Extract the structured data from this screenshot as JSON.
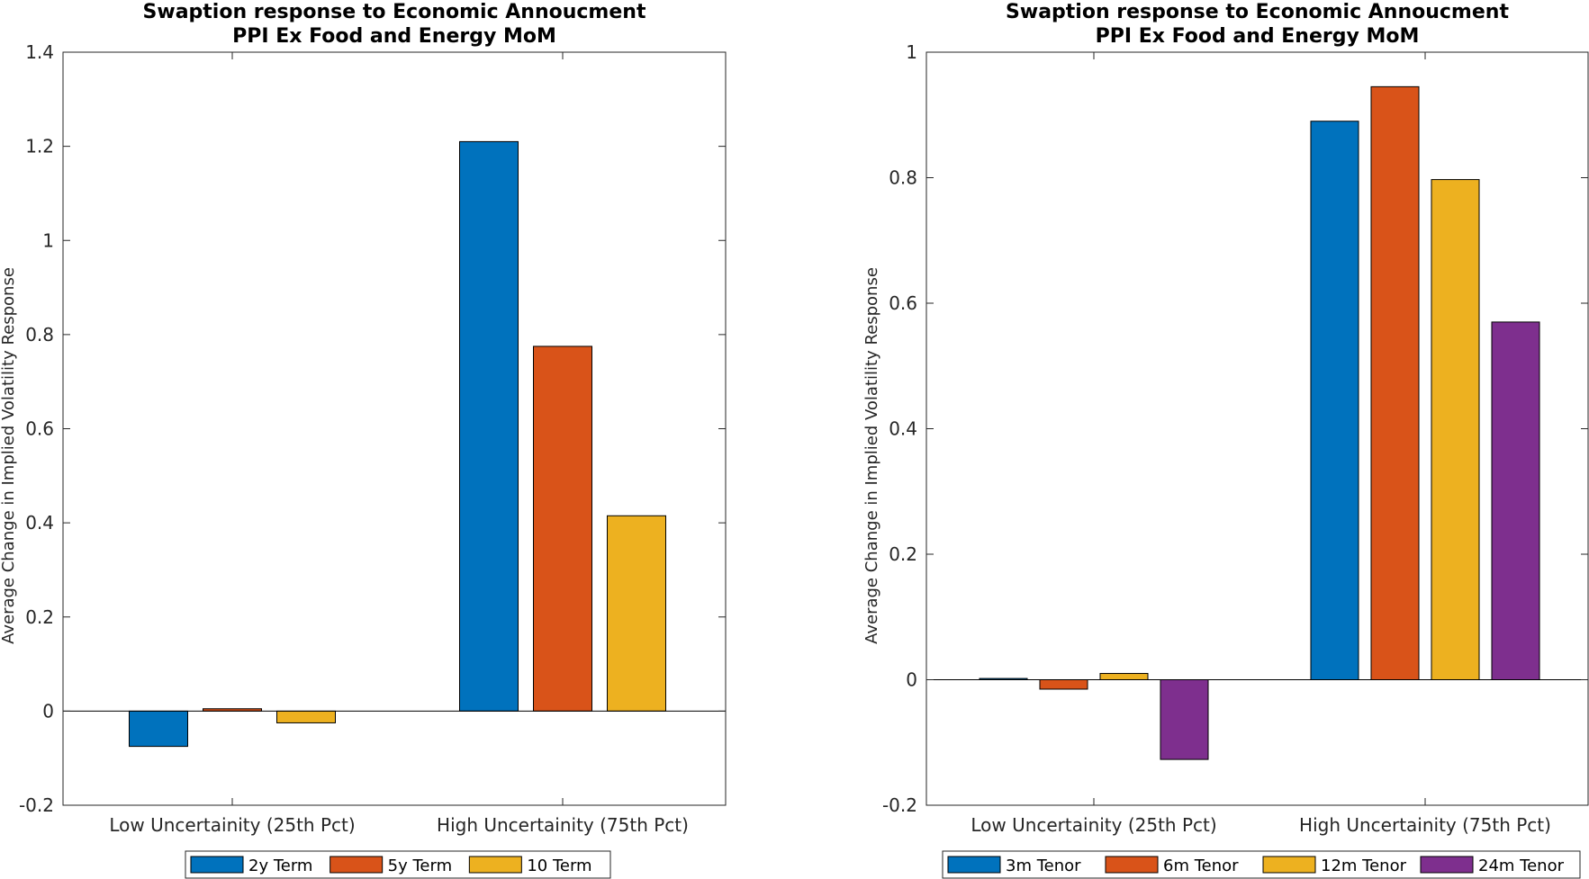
{
  "chart_data": [
    {
      "type": "bar",
      "title": "Swaption response to Economic Annoucment",
      "subtitle": "PPI Ex Food and Energy MoM",
      "xlabel": "",
      "ylabel": "Average Change in Implied Volatility Response",
      "categories": [
        "Low Uncertainity (25th Pct)",
        "High Uncertainity (75th Pct)"
      ],
      "ylim": [
        -0.2,
        1.4
      ],
      "yticks": [
        -0.2,
        0,
        0.2,
        0.4,
        0.6,
        0.8,
        1,
        1.2,
        1.4
      ],
      "ytick_labels": [
        "-0.2",
        "0",
        "0.2",
        "0.4",
        "0.6",
        "0.8",
        "1",
        "1.2",
        "1.4"
      ],
      "grid": false,
      "legend_placement": "bottom",
      "series": [
        {
          "name": "2y Term",
          "color": "#0072BD",
          "values": [
            -0.075,
            1.21
          ]
        },
        {
          "name": "5y Term",
          "color": "#D95319",
          "values": [
            0.005,
            0.775
          ]
        },
        {
          "name": "10 Term",
          "color": "#EDB120",
          "values": [
            -0.025,
            0.415
          ]
        }
      ]
    },
    {
      "type": "bar",
      "title": "Swaption response to Economic Annoucment",
      "subtitle": "PPI Ex Food and Energy MoM",
      "xlabel": "",
      "ylabel": "Average Change in Implied Volatility Response",
      "categories": [
        "Low Uncertainity (25th Pct)",
        "High Uncertainity (75th Pct)"
      ],
      "ylim": [
        -0.2,
        1
      ],
      "yticks": [
        -0.2,
        0,
        0.2,
        0.4,
        0.6,
        0.8,
        1
      ],
      "ytick_labels": [
        "-0.2",
        "0",
        "0.2",
        "0.4",
        "0.6",
        "0.8",
        "1"
      ],
      "grid": false,
      "legend_placement": "bottom",
      "series": [
        {
          "name": "3m Tenor",
          "color": "#0072BD",
          "values": [
            0.002,
            0.89
          ]
        },
        {
          "name": "6m Tenor",
          "color": "#D95319",
          "values": [
            -0.015,
            0.945
          ]
        },
        {
          "name": "12m Tenor",
          "color": "#EDB120",
          "values": [
            0.01,
            0.797
          ]
        },
        {
          "name": "24m Tenor",
          "color": "#7E2F8E",
          "values": [
            -0.127,
            0.57
          ]
        }
      ]
    }
  ]
}
